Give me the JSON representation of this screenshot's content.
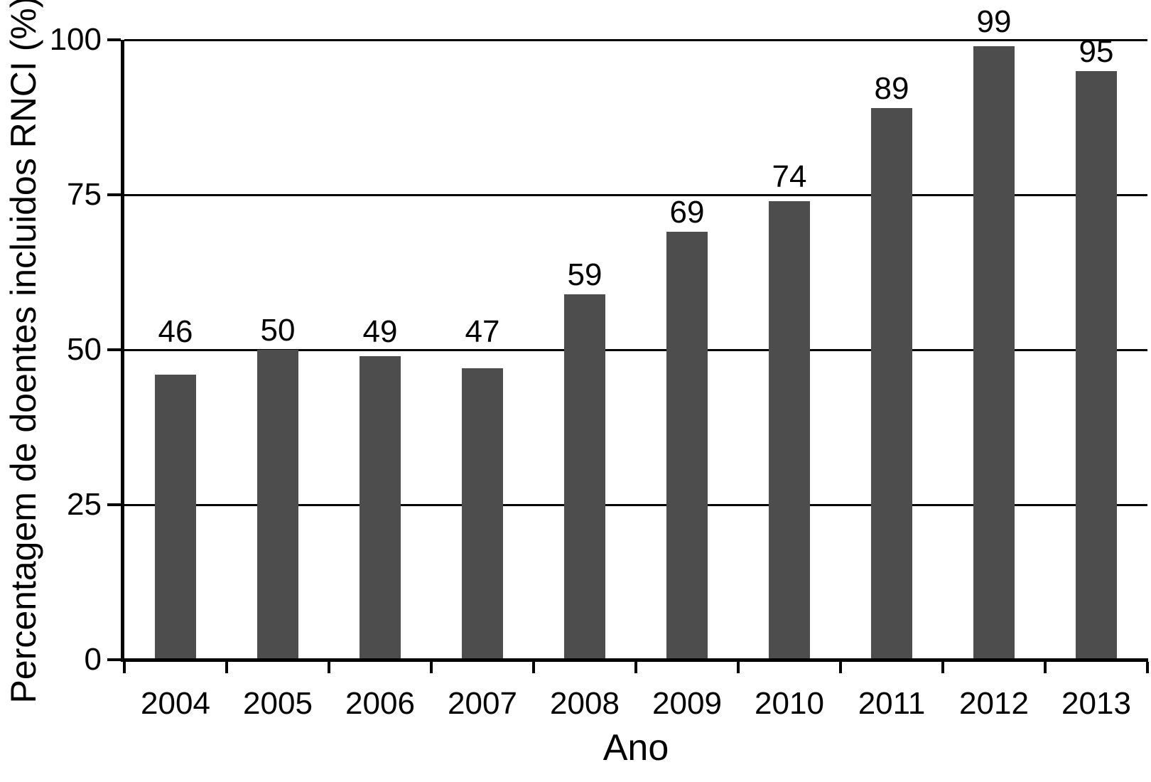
{
  "chart_data": {
    "type": "bar",
    "categories": [
      "2004",
      "2005",
      "2006",
      "2007",
      "2008",
      "2009",
      "2010",
      "2011",
      "2012",
      "2013"
    ],
    "values": [
      46,
      50,
      49,
      47,
      59,
      69,
      74,
      89,
      99,
      95
    ],
    "value_labels": [
      "46",
      "50",
      "49",
      "47",
      "59",
      "69",
      "74",
      "89",
      "99",
      "95"
    ],
    "show_value_labels": true,
    "title": "",
    "xlabel": "Ano",
    "ylabel": "Percentagem de doentes incluidos RNCI (%)",
    "ylim": [
      0,
      100
    ],
    "yticks": [
      0,
      25,
      50,
      75,
      100
    ],
    "ytick_labels": [
      "0",
      "25",
      "50",
      "75",
      "100"
    ],
    "grid": true,
    "gridline_values": [
      25,
      50,
      75,
      100
    ],
    "legend_position": "none",
    "bar_color": "#4d4d4d",
    "axis_color": "#000000",
    "text_color": "#000000",
    "background_color": "#ffffff"
  }
}
